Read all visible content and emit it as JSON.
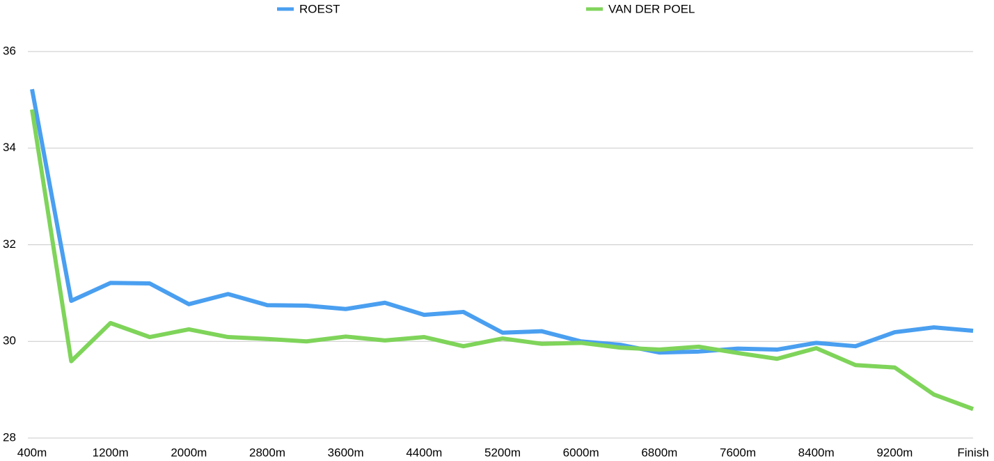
{
  "chart_data": {
    "type": "line",
    "categories": [
      "400m",
      null,
      "1200m",
      null,
      "2000m",
      null,
      "2800m",
      null,
      "3600m",
      null,
      "4400m",
      null,
      "5200m",
      null,
      "6000m",
      null,
      "6800m",
      null,
      "7600m",
      null,
      "8400m",
      null,
      "9200m",
      null,
      "Finish"
    ],
    "series": [
      {
        "name": "ROEST",
        "color": "#4a9ff0",
        "values": [
          35.22,
          30.84,
          31.21,
          31.2,
          30.77,
          30.98,
          30.75,
          30.74,
          30.67,
          30.8,
          30.55,
          30.61,
          30.18,
          30.21,
          30.0,
          29.93,
          29.77,
          29.79,
          29.85,
          29.83,
          29.97,
          29.9,
          30.19,
          30.29,
          30.22
        ]
      },
      {
        "name": "VAN DER POEL",
        "color": "#7fd45a",
        "values": [
          34.8,
          29.59,
          30.38,
          30.09,
          30.25,
          30.09,
          30.05,
          30.0,
          30.1,
          30.02,
          30.09,
          29.9,
          30.06,
          29.95,
          29.97,
          29.87,
          29.83,
          29.89,
          29.76,
          29.64,
          29.86,
          29.51,
          29.46,
          28.9,
          28.6
        ]
      }
    ],
    "ylim": [
      28,
      36
    ],
    "yticks": [
      28,
      30,
      32,
      34,
      36
    ],
    "grid": true,
    "legend": "top"
  }
}
